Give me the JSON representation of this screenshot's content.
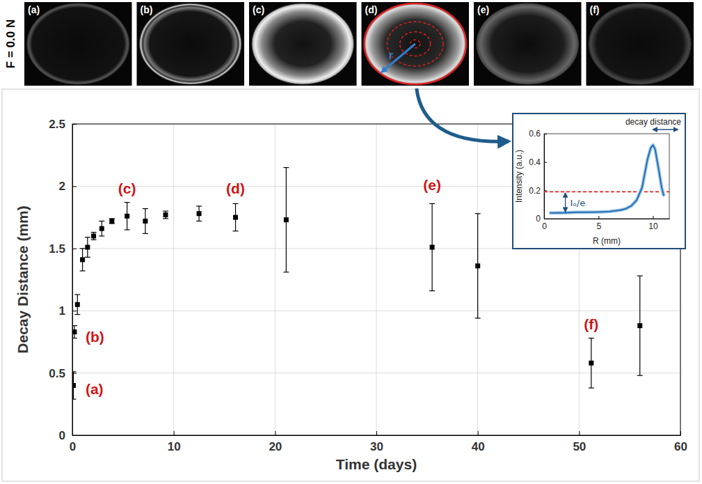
{
  "panels": {
    "row_label": "F = 0.0 N",
    "labels": [
      "(a)",
      "(b)",
      "(c)",
      "(d)",
      "(e)",
      "(f)"
    ],
    "radius_label": "r"
  },
  "chart_data": [
    {
      "type": "scatter",
      "xlabel": "Time (days)",
      "ylabel": "Decay Distance (mm)",
      "x": [
        0.1,
        0.2,
        0.5,
        1.0,
        1.5,
        2.1,
        2.9,
        3.9,
        5.4,
        7.2,
        9.2,
        12.5,
        16.1,
        21.1,
        35.5,
        40.0,
        51.2,
        56.0
      ],
      "values": [
        0.4,
        0.83,
        1.05,
        1.41,
        1.51,
        1.6,
        1.66,
        1.72,
        1.76,
        1.72,
        1.77,
        1.78,
        1.75,
        1.73,
        1.51,
        1.36,
        0.58,
        0.88
      ],
      "errors": [
        0.11,
        0.05,
        0.08,
        0.09,
        0.08,
        0.03,
        0.06,
        0.02,
        0.11,
        0.1,
        0.03,
        0.06,
        0.11,
        0.42,
        0.35,
        0.42,
        0.2,
        0.4
      ],
      "xlim": [
        0,
        60
      ],
      "xticks": [
        0,
        10,
        20,
        30,
        40,
        50,
        60
      ],
      "ylim": [
        0,
        2.5
      ],
      "yticks": [
        0,
        0.5,
        1,
        1.5,
        2,
        2.5
      ],
      "grid": true,
      "color": "#000000",
      "marker": "square",
      "annotations": [
        {
          "text": "(a)",
          "x": 1.3,
          "y": 0.36
        },
        {
          "text": "(b)",
          "x": 1.3,
          "y": 0.78
        },
        {
          "text": "(c)",
          "x": 5.4,
          "y": 1.97
        },
        {
          "text": "(d)",
          "x": 16.1,
          "y": 1.97
        },
        {
          "text": "(e)",
          "x": 35.5,
          "y": 2.0
        },
        {
          "text": "(f)",
          "x": 51.2,
          "y": 0.88
        }
      ]
    },
    {
      "type": "line",
      "xlabel": "R (mm)",
      "ylabel": "Intensity (a.u.)",
      "x": [
        0.5,
        1,
        2,
        3,
        4,
        5,
        6,
        7,
        7.5,
        8,
        8.5,
        9,
        9.5,
        9.8,
        10,
        10.2,
        10.5,
        10.8,
        11
      ],
      "values": [
        0.04,
        0.04,
        0.042,
        0.045,
        0.045,
        0.047,
        0.05,
        0.06,
        0.07,
        0.09,
        0.13,
        0.22,
        0.42,
        0.5,
        0.52,
        0.49,
        0.36,
        0.22,
        0.16
      ],
      "xlim": [
        0,
        11.5
      ],
      "xticks": [
        0,
        5,
        10
      ],
      "ylim": [
        0,
        0.6
      ],
      "yticks": [
        0,
        0.2,
        0.4,
        0.6
      ],
      "color": "#1f6fb4",
      "line_style": "solid",
      "threshold": 0.19,
      "threshold_label": "Iₒ/e",
      "decay_label": "decay distance"
    }
  ]
}
